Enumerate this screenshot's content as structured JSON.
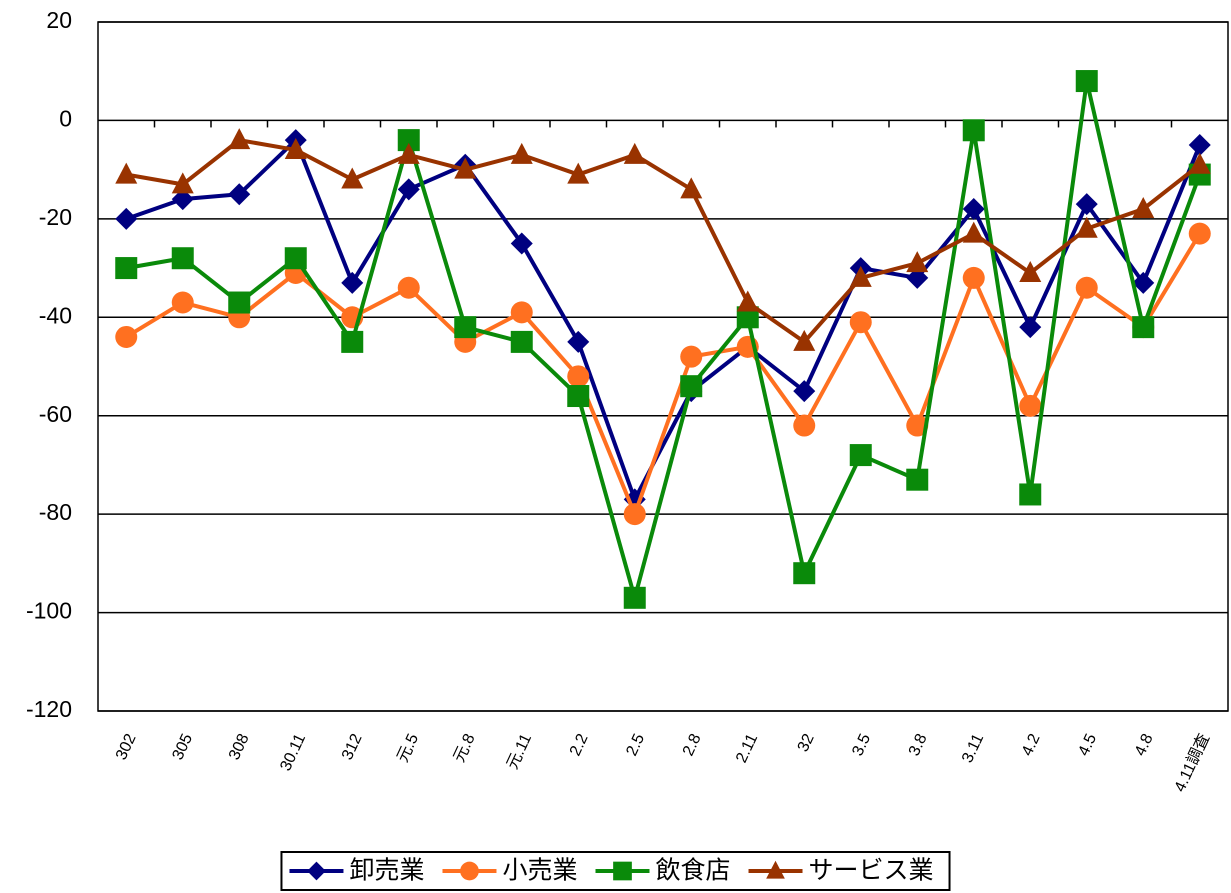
{
  "chart_data": {
    "type": "line",
    "categories": [
      "302",
      "305",
      "308",
      "30.11",
      "312",
      "元.5",
      "元.8",
      "元.11",
      "2.2",
      "2.5",
      "2.8",
      "2.11",
      "32",
      "3.5",
      "3.8",
      "3.11",
      "4.2",
      "4.5",
      "4.8",
      "4.11調査"
    ],
    "series": [
      {
        "name": "卸売業",
        "color": "#000080",
        "marker": "diamond",
        "values": [
          -20,
          -16,
          -15,
          -4,
          -33,
          -14,
          -9,
          -25,
          -45,
          -77,
          -55,
          -46,
          -55,
          -30,
          -32,
          -18,
          -42,
          -17,
          -33,
          -5
        ]
      },
      {
        "name": "小売業",
        "color": "#ff7020",
        "marker": "circle",
        "values": [
          -44,
          -37,
          -40,
          -31,
          -40,
          -34,
          -45,
          -39,
          -52,
          -80,
          -48,
          -46,
          -62,
          -41,
          -62,
          -32,
          -58,
          -34,
          -42,
          -23
        ]
      },
      {
        "name": "飲食店",
        "color": "#0a8a0a",
        "marker": "square",
        "values": [
          -30,
          -28,
          -37,
          -28,
          -45,
          -4,
          -42,
          -45,
          -56,
          -97,
          -54,
          -40,
          -92,
          -68,
          -73,
          -2,
          -76,
          8,
          -42,
          -11
        ]
      },
      {
        "name": "サービス業",
        "color": "#993300",
        "marker": "triangle",
        "values": [
          -11,
          -13,
          -4,
          -6,
          -12,
          -7,
          -10,
          -7,
          -11,
          -7,
          -14,
          -37,
          -45,
          -32,
          -29,
          -23,
          -31,
          -22,
          -18,
          -9
        ]
      }
    ],
    "ylim": [
      -120,
      20
    ],
    "yticks": [
      -120,
      -100,
      -80,
      -60,
      -40,
      -20,
      0,
      20
    ],
    "grid": true,
    "legend": "bottom"
  }
}
